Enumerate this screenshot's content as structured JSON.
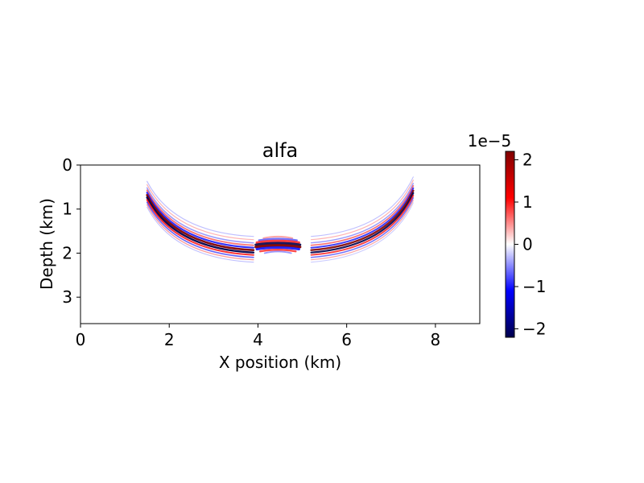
{
  "chart_data": {
    "type": "heatmap",
    "title": "alfa",
    "xlabel": "X position (km)",
    "ylabel": "Depth (km)",
    "xlim": [
      0,
      9
    ],
    "ylim": [
      3.6,
      0
    ],
    "x_ticks": [
      0,
      2,
      4,
      6,
      8
    ],
    "y_ticks": [
      0,
      1,
      2,
      3
    ],
    "x_tick_labels": [
      "0",
      "2",
      "4",
      "6",
      "8"
    ],
    "y_tick_labels": [
      "0",
      "1",
      "2",
      "3"
    ],
    "colormap": "seismic",
    "colorbar": {
      "range": [
        -2.2e-05,
        2.2e-05
      ],
      "ticks": [
        2,
        1,
        0,
        -1,
        -2
      ],
      "tick_labels": [
        "2",
        "1",
        "0",
        "−1",
        "−2"
      ],
      "offset_text": "1e−5",
      "colors": [
        "#00004c",
        "#0000ff",
        "#ffffff",
        "#ff0000",
        "#800000"
      ]
    },
    "features": [
      {
        "name": "left-reflection-arc",
        "x_range_km": [
          1.5,
          3.9
        ],
        "depth_range_km": [
          0.7,
          1.95
        ]
      },
      {
        "name": "center-reflector",
        "x_range_km": [
          3.9,
          5.0
        ],
        "depth_range_km": [
          1.6,
          2.0
        ]
      },
      {
        "name": "right-reflection-arc",
        "x_range_km": [
          5.2,
          7.5
        ],
        "depth_range_km": [
          0.6,
          1.95
        ]
      }
    ],
    "grid": false
  }
}
